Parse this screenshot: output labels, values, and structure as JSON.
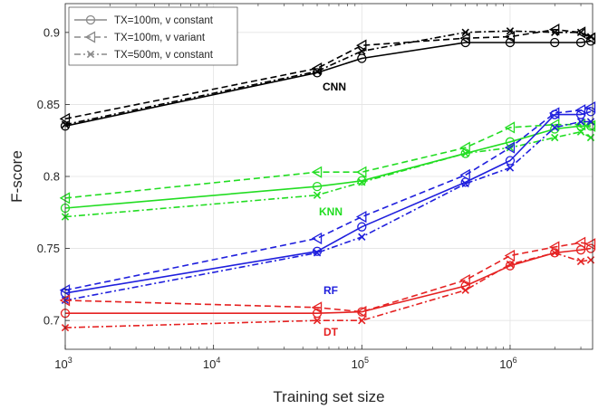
{
  "chart_data": {
    "type": "line",
    "xscale": "log",
    "xlim": [
      1000,
      3600000
    ],
    "ylim": [
      0.68,
      0.92
    ],
    "xlabel": "Training set size",
    "ylabel": "F-score",
    "x_ticks": [
      {
        "value": 1000,
        "base": "10",
        "exp": "3"
      },
      {
        "value": 10000,
        "base": "10",
        "exp": "4"
      },
      {
        "value": 100000,
        "base": "10",
        "exp": "5"
      },
      {
        "value": 1000000,
        "base": "10",
        "exp": "6"
      }
    ],
    "y_ticks": [
      {
        "value": 0.7,
        "label": "0.7"
      },
      {
        "value": 0.75,
        "label": "0.75"
      },
      {
        "value": 0.8,
        "label": "0.8"
      },
      {
        "value": 0.85,
        "label": "0.85"
      },
      {
        "value": 0.9,
        "label": "0.9"
      }
    ],
    "grid": true,
    "legend_position": "top-left",
    "legend": [
      {
        "label": "TX=100m, v constant",
        "marker": "circle",
        "dash": "solid"
      },
      {
        "label": "TX=100m, v variant",
        "marker": "triangle-left",
        "dash": "dashed"
      },
      {
        "label": "TX=500m, v constant",
        "marker": "x",
        "dash": "dashdot"
      }
    ],
    "x": [
      1000,
      50000,
      100000,
      500000,
      1000000,
      2000000,
      3000000,
      3500000
    ],
    "groups": [
      {
        "label": "CNN",
        "color": "#000000",
        "series": [
          {
            "values": [
              0.835,
              0.872,
              0.882,
              0.893,
              0.893,
              0.893,
              0.893,
              0.894
            ]
          },
          {
            "values": [
              0.84,
              0.875,
              0.891,
              0.896,
              0.897,
              0.902,
              0.9,
              0.896
            ]
          },
          {
            "values": [
              0.836,
              0.873,
              0.887,
              0.9,
              0.901,
              0.9,
              0.9,
              0.897
            ]
          }
        ]
      },
      {
        "label": "KNN",
        "color": "#22dd22",
        "series": [
          {
            "values": [
              0.778,
              0.793,
              0.797,
              0.816,
              0.824,
              0.833,
              0.835,
              0.835
            ]
          },
          {
            "values": [
              0.785,
              0.803,
              0.803,
              0.82,
              0.834,
              0.836,
              0.836,
              0.835
            ]
          },
          {
            "values": [
              0.772,
              0.787,
              0.796,
              0.816,
              0.82,
              0.827,
              0.831,
              0.827
            ]
          }
        ]
      },
      {
        "label": "RF",
        "color": "#1f1fdd",
        "series": [
          {
            "values": [
              0.719,
              0.748,
              0.765,
              0.796,
              0.811,
              0.843,
              0.843,
              0.845
            ]
          },
          {
            "values": [
              0.721,
              0.757,
              0.772,
              0.801,
              0.82,
              0.844,
              0.846,
              0.848
            ]
          },
          {
            "values": [
              0.714,
              0.747,
              0.758,
              0.795,
              0.806,
              0.834,
              0.838,
              0.838
            ]
          }
        ]
      },
      {
        "label": "DT",
        "color": "#e52222",
        "series": [
          {
            "values": [
              0.705,
              0.705,
              0.706,
              0.724,
              0.738,
              0.747,
              0.749,
              0.75
            ]
          },
          {
            "values": [
              0.714,
              0.709,
              0.706,
              0.728,
              0.745,
              0.751,
              0.754,
              0.753
            ]
          },
          {
            "values": [
              0.695,
              0.7,
              0.7,
              0.721,
              0.739,
              0.747,
              0.741,
              0.742
            ]
          }
        ]
      }
    ]
  }
}
